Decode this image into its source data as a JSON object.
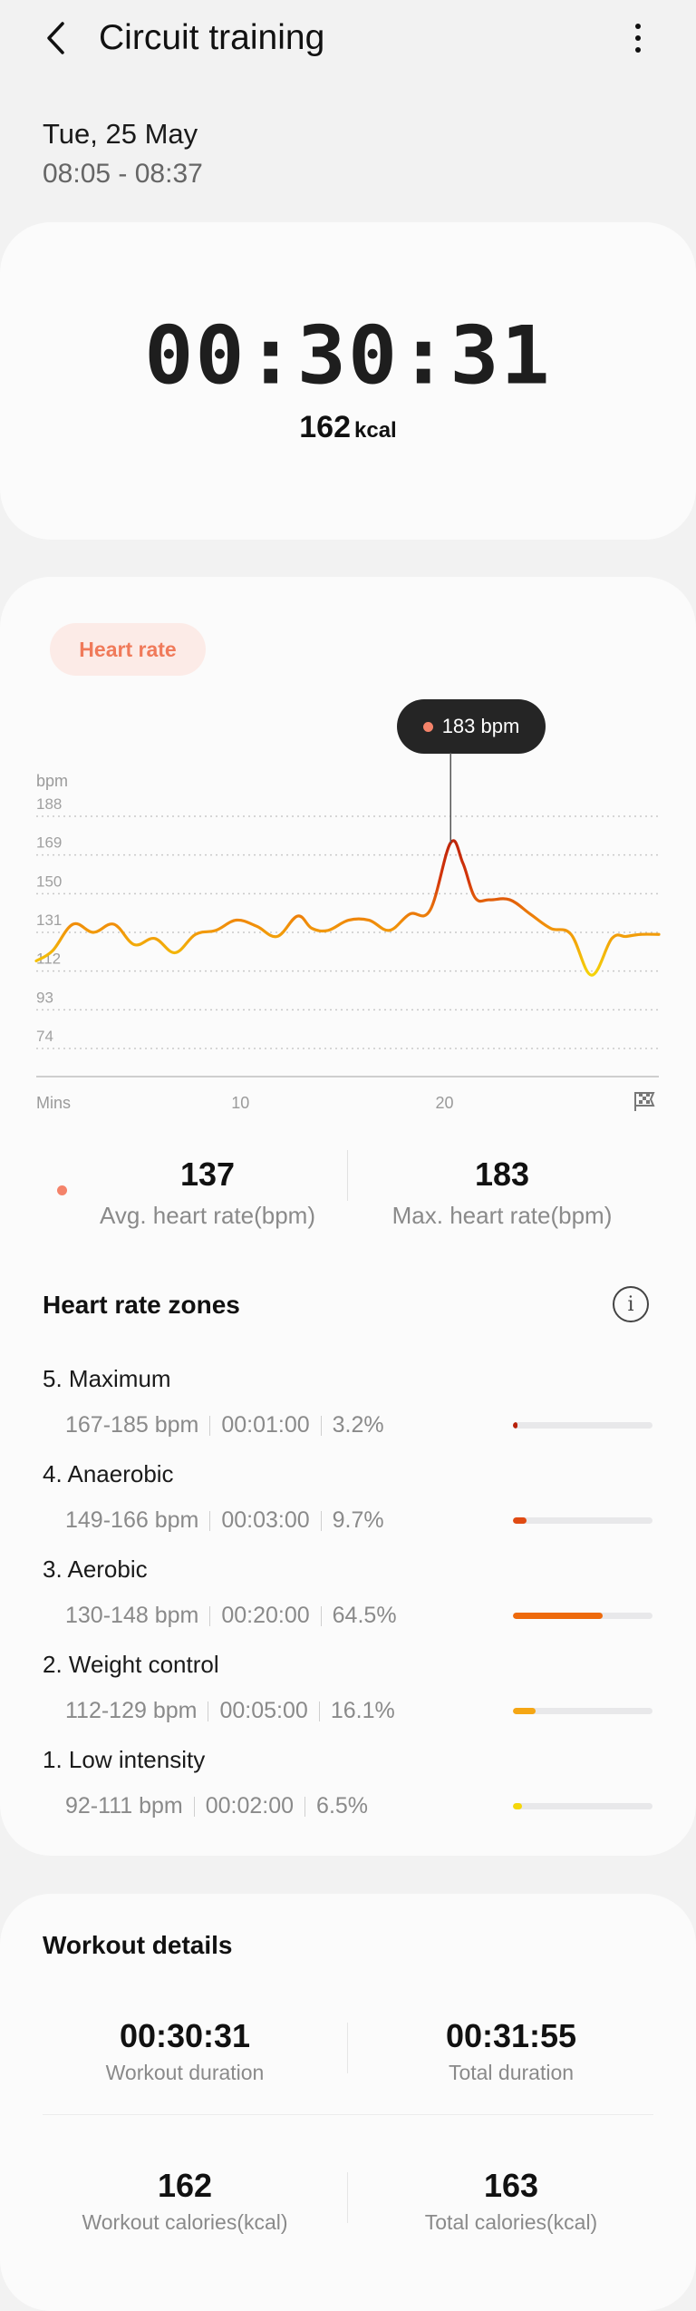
{
  "header": {
    "title": "Circuit training",
    "date": "Tue, 25 May",
    "time_range": "08:05 - 08:37"
  },
  "summary": {
    "duration": "00:30:31",
    "calories": "162",
    "calories_unit": "kcal"
  },
  "heart_rate": {
    "tab_label": "Heart rate",
    "tooltip": "183 bpm",
    "avg_value": "137",
    "avg_label": "Avg. heart rate(bpm)",
    "max_value": "183",
    "max_label": "Max. heart rate(bpm)",
    "colors": {
      "accent": "#f4836a",
      "line_low": "#f5d90a",
      "line_mid": "#f08a0a",
      "line_high": "#b8200a"
    }
  },
  "chart_data": {
    "type": "line",
    "ylabel": "bpm",
    "xlabel": "Mins",
    "y_ticks": [
      "188",
      "169",
      "150",
      "131",
      "112",
      "93",
      "74"
    ],
    "x_ticks": [
      "10",
      "20"
    ],
    "ylim": [
      74,
      188
    ],
    "xlim": [
      0,
      30.5
    ],
    "grid": "dotted horizontal",
    "series": [
      {
        "x": [
          0,
          0.8,
          1.8,
          2.8,
          3.8,
          4.8,
          5.8,
          6.8,
          7.8,
          8.8,
          9.8,
          10.8,
          11.8,
          12.8,
          13.5,
          14.3,
          15.3,
          16.3,
          17.3,
          18.3,
          19.3,
          20.3,
          20.9,
          21.5,
          22.2,
          23.2,
          24.2,
          25.2,
          26.2,
          27.2,
          28.2,
          28.9,
          29.6,
          30.5
        ],
        "y": [
          117,
          122,
          135,
          131,
          135,
          125,
          128,
          121,
          130,
          132,
          137,
          134,
          129,
          139,
          133,
          132,
          137,
          137,
          132,
          140,
          142,
          175,
          165,
          148,
          147,
          147,
          140,
          133,
          130,
          110,
          128,
          129,
          130,
          130
        ]
      }
    ]
  },
  "zones": {
    "title": "Heart rate zones",
    "items": [
      {
        "name": "5. Maximum",
        "range": "167-185 bpm",
        "time": "00:01:00",
        "percent": "3.2%",
        "fraction": 0.032,
        "color": "#b8200a"
      },
      {
        "name": "4. Anaerobic",
        "range": "149-166 bpm",
        "time": "00:03:00",
        "percent": "9.7%",
        "fraction": 0.097,
        "color": "#e04a12"
      },
      {
        "name": "3. Aerobic",
        "range": "130-148 bpm",
        "time": "00:20:00",
        "percent": "64.5%",
        "fraction": 0.645,
        "color": "#ee6a0c"
      },
      {
        "name": "2. Weight control",
        "range": "112-129 bpm",
        "time": "00:05:00",
        "percent": "16.1%",
        "fraction": 0.161,
        "color": "#f5a614"
      },
      {
        "name": "1. Low intensity",
        "range": "92-111 bpm",
        "time": "00:02:00",
        "percent": "6.5%",
        "fraction": 0.065,
        "color": "#f5d70a"
      }
    ]
  },
  "workout_details": {
    "title": "Workout details",
    "workout_duration": "00:30:31",
    "workout_duration_label": "Workout duration",
    "total_duration": "00:31:55",
    "total_duration_label": "Total duration",
    "workout_calories": "162",
    "workout_calories_label": "Workout calories(kcal)",
    "total_calories": "163",
    "total_calories_label": "Total calories(kcal)"
  }
}
